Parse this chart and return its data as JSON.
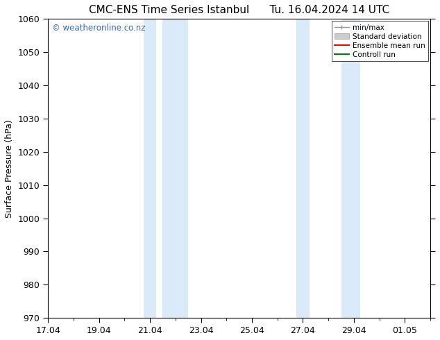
{
  "title_left": "CMC-ENS Time Series Istanbul",
  "title_right": "Tu. 16.04.2024 14 UTC",
  "ylabel": "Surface Pressure (hPa)",
  "ylim": [
    970,
    1060
  ],
  "yticks": [
    970,
    980,
    990,
    1000,
    1010,
    1020,
    1030,
    1040,
    1050,
    1060
  ],
  "xtick_labels": [
    "17.04",
    "19.04",
    "21.04",
    "23.04",
    "25.04",
    "27.04",
    "29.04",
    "01.05"
  ],
  "xtick_positions": [
    0,
    2,
    4,
    6,
    8,
    10,
    12,
    14
  ],
  "xlim": [
    0,
    15
  ],
  "shaded_bands": [
    {
      "x_start": 3.75,
      "x_end": 4.25
    },
    {
      "x_start": 4.5,
      "x_end": 5.5
    },
    {
      "x_start": 9.75,
      "x_end": 10.25
    },
    {
      "x_start": 11.5,
      "x_end": 12.25
    }
  ],
  "shaded_color": "#daeaf8",
  "watermark": "© weatheronline.co.nz",
  "watermark_color": "#3366cc",
  "legend_labels": [
    "min/max",
    "Standard deviation",
    "Ensemble mean run",
    "Controll run"
  ],
  "legend_line_colors": [
    "#999999",
    "#cccccc",
    "#ff0000",
    "#008000"
  ],
  "bg_color": "#ffffff",
  "plot_bg_color": "#ffffff",
  "border_color": "#000000",
  "tick_color": "#000000",
  "font_size": 9,
  "title_font_size": 11
}
